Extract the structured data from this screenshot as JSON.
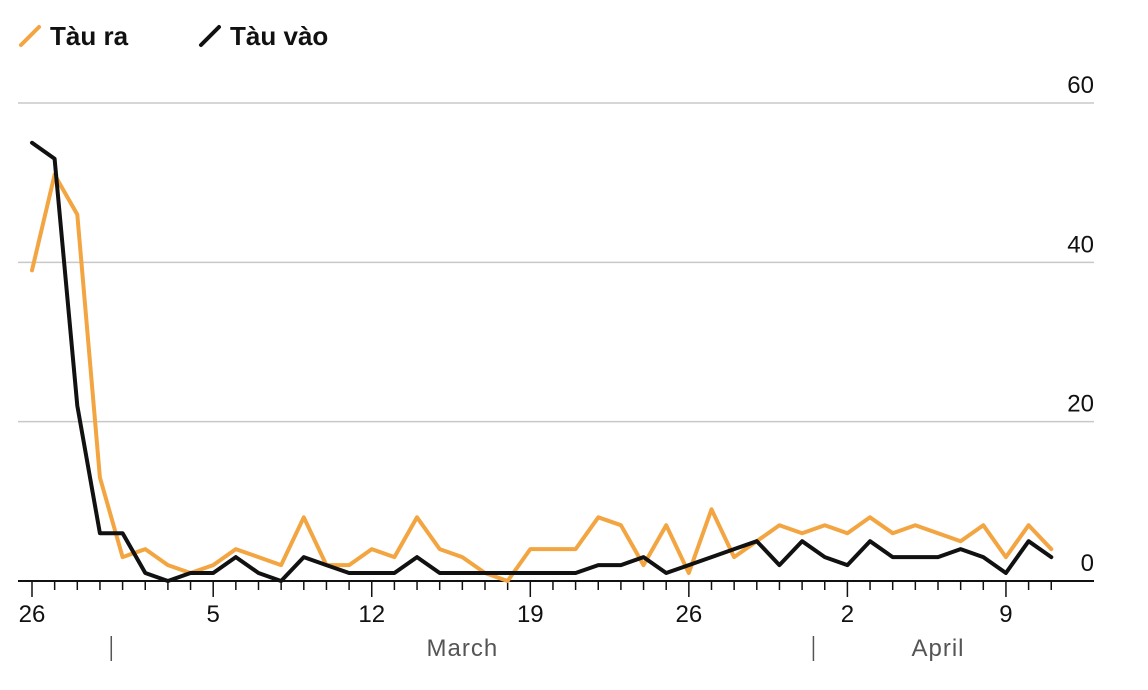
{
  "chart_data": {
    "type": "line",
    "title": "",
    "xlabel": "",
    "ylabel": "",
    "ylim": [
      0,
      60
    ],
    "yticks": [
      "0",
      "20",
      "40",
      "60"
    ],
    "grid": true,
    "legend_position": "top-left",
    "x_start": "2020-02-26",
    "x_ticks": [
      {
        "date": "2020-02-26",
        "label": "26"
      },
      {
        "date": "2020-03-05",
        "label": "5"
      },
      {
        "date": "2020-03-12",
        "label": "12"
      },
      {
        "date": "2020-03-19",
        "label": "19"
      },
      {
        "date": "2020-03-26",
        "label": "26"
      },
      {
        "date": "2020-04-02",
        "label": "2"
      },
      {
        "date": "2020-04-09",
        "label": "9"
      }
    ],
    "month_labels": [
      {
        "label": "March",
        "start": "2020-03-01",
        "end": "2020-03-31"
      },
      {
        "label": "April",
        "start": "2020-04-01",
        "end": "2020-04-13"
      }
    ],
    "series": [
      {
        "name": "Tàu ra",
        "color": "#F2A541",
        "values": [
          39,
          51,
          46,
          13,
          3,
          4,
          2,
          1,
          2,
          4,
          3,
          2,
          8,
          2,
          2,
          4,
          3,
          8,
          4,
          3,
          1,
          0,
          4,
          4,
          4,
          8,
          7,
          2,
          7,
          1,
          9,
          3,
          5,
          7,
          6,
          7,
          6,
          8,
          6,
          7,
          6,
          5,
          7,
          3,
          7,
          4
        ]
      },
      {
        "name": "Tàu vào",
        "color": "#111111",
        "values": [
          55,
          53,
          22,
          6,
          6,
          1,
          0,
          1,
          1,
          3,
          1,
          0,
          3,
          2,
          1,
          1,
          1,
          3,
          1,
          1,
          1,
          1,
          1,
          1,
          1,
          2,
          2,
          3,
          1,
          2,
          3,
          4,
          5,
          2,
          5,
          3,
          2,
          5,
          3,
          3,
          3,
          4,
          3,
          1,
          5,
          3
        ]
      }
    ]
  }
}
